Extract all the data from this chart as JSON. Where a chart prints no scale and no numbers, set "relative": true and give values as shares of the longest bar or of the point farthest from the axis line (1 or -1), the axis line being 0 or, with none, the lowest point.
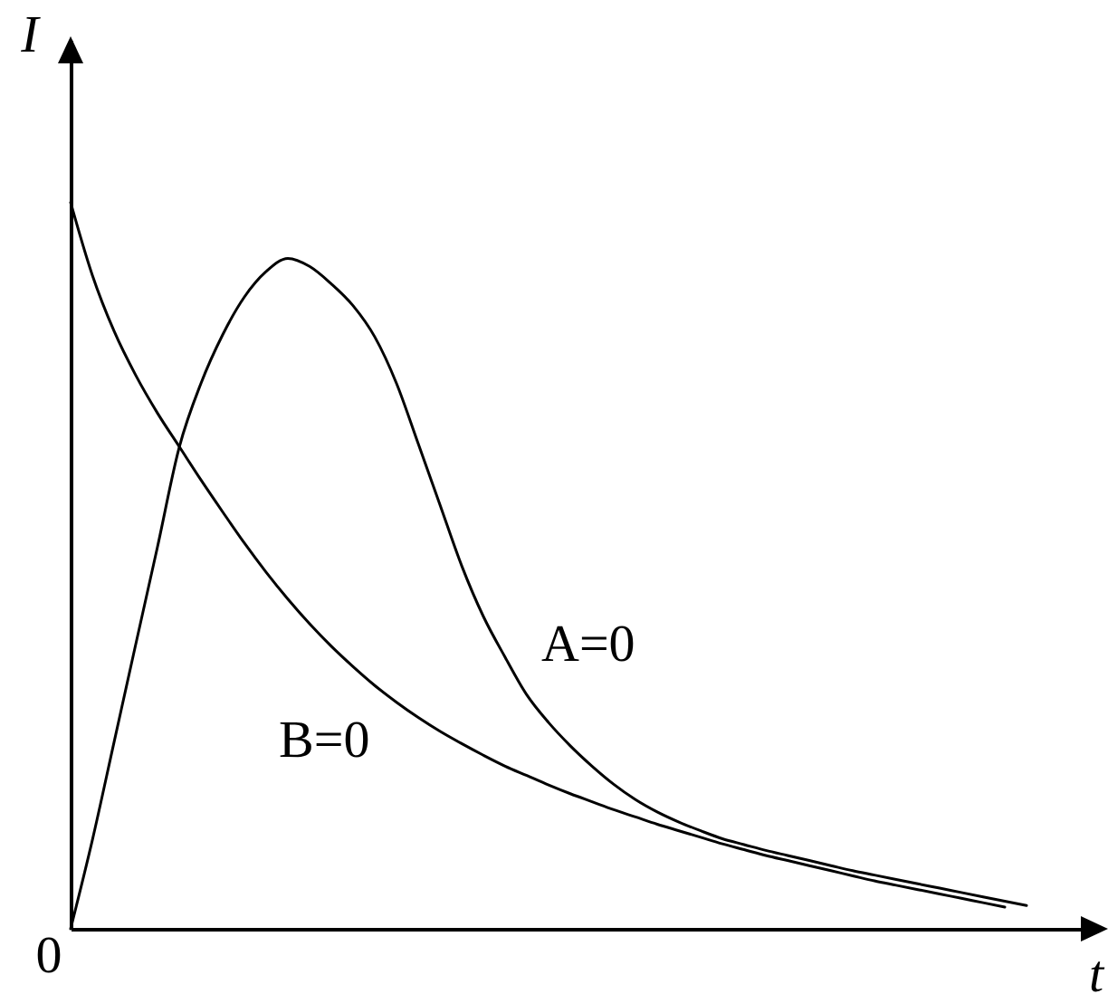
{
  "chart_data": {
    "type": "line",
    "relative": true,
    "xlabel": "t",
    "ylabel": "I",
    "categories": [
      null,
      null,
      null,
      null,
      null,
      null,
      null,
      null,
      null,
      null,
      null,
      null,
      null,
      null,
      null,
      null,
      null,
      null,
      null,
      null,
      null,
      null,
      null,
      null,
      null,
      null,
      null,
      null,
      null,
      null,
      null,
      null,
      null,
      null,
      null,
      null,
      null,
      null,
      null,
      null,
      null,
      null,
      null,
      null,
      null,
      null,
      null,
      null
    ],
    "series": [
      {
        "name": "A=0",
        "color": "#000000",
        "values": [
          0,
          0.122,
          0.257,
          0.392,
          0.526,
          0.663,
          0.751,
          0.818,
          0.87,
          0.905,
          0.923,
          0.912,
          0.888,
          0.858,
          0.815,
          0.751,
          0.668,
          0.584,
          0.5,
          0.43,
          0.374,
          0.322,
          0.284,
          0.252,
          0.224,
          0.199,
          0.178,
          0.161,
          0.147,
          0.135,
          0.124,
          0.116,
          0.108,
          0.101,
          0.094,
          0.087,
          0.08,
          0.074,
          0.068,
          0.062,
          0.056,
          0.05,
          0.044,
          0.038,
          0.032,
          null,
          null,
          null
        ]
      },
      {
        "name": "B=0",
        "color": "#000000",
        "values": [
          1,
          0.9,
          0.823,
          0.762,
          0.71,
          0.664,
          0.618,
          0.574,
          0.531,
          0.491,
          0.454,
          0.42,
          0.389,
          0.361,
          0.335,
          0.312,
          0.291,
          0.272,
          0.255,
          0.239,
          0.224,
          0.211,
          0.198,
          0.186,
          0.175,
          0.164,
          0.154,
          0.144,
          0.135,
          0.126,
          0.117,
          0.109,
          0.101,
          0.094,
          0.087,
          0.08,
          0.073,
          0.066,
          0.06,
          0.054,
          0.048,
          0.042,
          0.036,
          0.03,
          null,
          null,
          null,
          null
        ]
      }
    ],
    "annotations": [
      "0"
    ]
  }
}
